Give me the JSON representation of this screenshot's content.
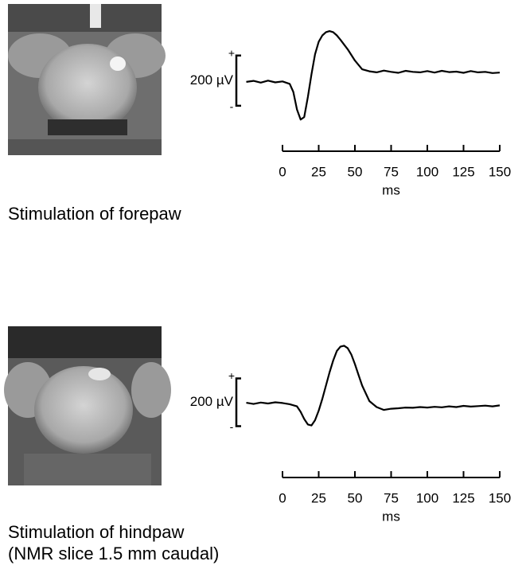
{
  "chart_data": [
    {
      "type": "line",
      "color": "#000000",
      "x": [
        -25,
        -20,
        -15,
        -10,
        -5,
        0,
        5,
        7.5,
        10,
        12.5,
        15,
        17.5,
        20,
        22.5,
        25,
        27.5,
        30,
        32.5,
        35,
        37.5,
        40,
        45,
        50,
        55,
        60,
        65,
        70,
        75,
        80,
        85,
        90,
        95,
        100,
        105,
        110,
        115,
        120,
        125,
        130,
        135,
        140,
        145,
        150
      ],
      "values": [
        0,
        4,
        -3,
        5,
        -2,
        2,
        -8,
        -40,
        -110,
        -150,
        -140,
        -60,
        30,
        110,
        160,
        185,
        198,
        202,
        198,
        185,
        168,
        130,
        85,
        50,
        42,
        38,
        45,
        40,
        36,
        44,
        40,
        38,
        43,
        37,
        44,
        39,
        41,
        36,
        43,
        38,
        40,
        35,
        37
      ],
      "xlim": [
        -25,
        150
      ],
      "xticks": [
        0,
        25,
        50,
        75,
        100,
        125,
        150
      ],
      "xlabel": "ms",
      "ylim": [
        -200,
        250
      ],
      "scale_bar": {
        "label": "200 µV",
        "range": [
          -95,
          105
        ],
        "plus": "+",
        "minus": "-"
      },
      "caption": [
        "Stimulation of forepaw"
      ]
    },
    {
      "type": "line",
      "color": "#000000",
      "x": [
        -25,
        -20,
        -15,
        -10,
        -5,
        0,
        5,
        10,
        12.5,
        15,
        17.5,
        20,
        22.5,
        25,
        27.5,
        30,
        32.5,
        35,
        37.5,
        40,
        42.5,
        45,
        47.5,
        50,
        52.5,
        55,
        60,
        65,
        70,
        75,
        80,
        85,
        90,
        95,
        100,
        105,
        110,
        115,
        120,
        125,
        130,
        135,
        140,
        145,
        150
      ],
      "values": [
        3,
        -2,
        4,
        0,
        5,
        2,
        -3,
        -12,
        -35,
        -65,
        -88,
        -92,
        -70,
        -30,
        20,
        75,
        130,
        180,
        220,
        238,
        242,
        232,
        205,
        165,
        120,
        75,
        10,
        -15,
        -27,
        -22,
        -20,
        -17,
        -18,
        -15,
        -17,
        -14,
        -16,
        -12,
        -15,
        -10,
        -13,
        -11,
        -9,
        -12,
        -8
      ],
      "xlim": [
        -25,
        150
      ],
      "xticks": [
        0,
        25,
        50,
        75,
        100,
        125,
        150
      ],
      "xlabel": "ms",
      "ylim": [
        -150,
        300
      ],
      "scale_bar": {
        "label": "200 µV",
        "range": [
          -95,
          105
        ],
        "plus": "+",
        "minus": "-"
      },
      "caption": [
        "Stimulation of hindpaw",
        "(NMR slice 1.5 mm caudal)"
      ]
    }
  ]
}
